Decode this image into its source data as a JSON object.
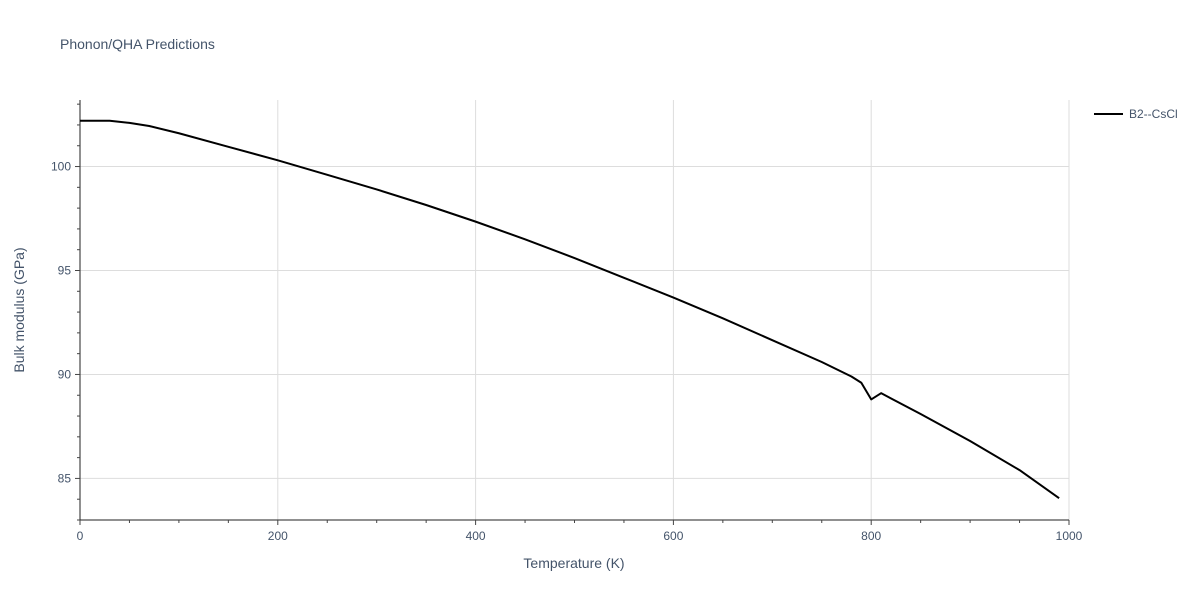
{
  "chart_data": {
    "type": "line",
    "title": "Phonon/QHA Predictions",
    "xlabel": "Temperature (K)",
    "ylabel": "Bulk modulus (GPa)",
    "xlim": [
      0,
      1000
    ],
    "ylim": [
      83,
      103.2
    ],
    "x_ticks": [
      0,
      200,
      400,
      600,
      800,
      1000
    ],
    "x_tick_labels": [
      "0",
      "200",
      "400",
      "600",
      "800",
      "1000"
    ],
    "y_ticks": [
      85,
      90,
      95,
      100
    ],
    "y_tick_labels": [
      "85",
      "90",
      "95",
      "100"
    ],
    "grid": true,
    "legend_position": "top-right",
    "series": [
      {
        "name": "B2--CsCl",
        "color": "#000000",
        "x": [
          0,
          30,
          50,
          70,
          100,
          150,
          200,
          250,
          300,
          350,
          400,
          450,
          500,
          550,
          600,
          650,
          700,
          750,
          780,
          790,
          800,
          810,
          850,
          900,
          950,
          990
        ],
        "y": [
          102.2,
          102.2,
          102.1,
          101.95,
          101.6,
          100.95,
          100.3,
          99.6,
          98.9,
          98.15,
          97.35,
          96.5,
          95.6,
          94.65,
          93.7,
          92.7,
          91.65,
          90.6,
          89.9,
          89.6,
          88.8,
          89.1,
          88.1,
          86.8,
          85.4,
          84.05
        ]
      }
    ]
  }
}
